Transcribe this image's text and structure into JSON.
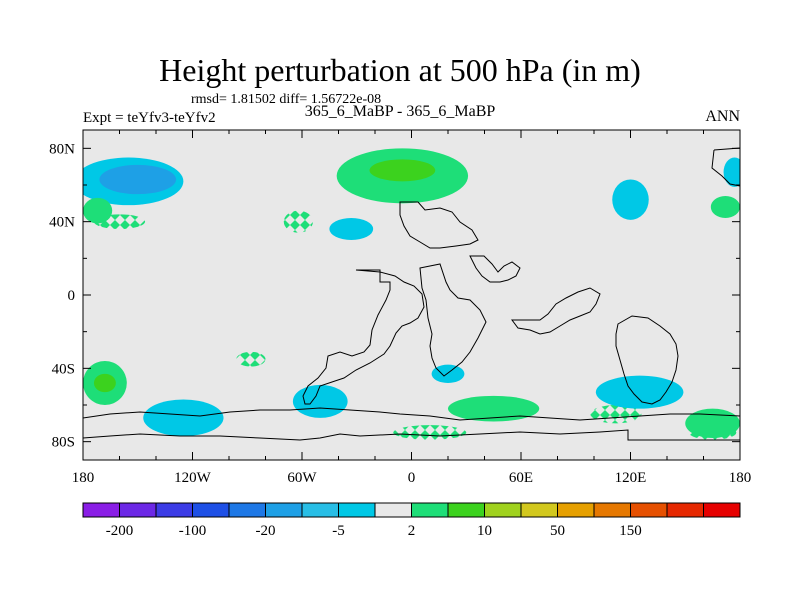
{
  "chart_data": {
    "type": "heatmap",
    "title": "Height perturbation at 500 hPa (in m)",
    "stats_text": "rmsd= 1.81502 diff= 1.56722e-08",
    "left_label": "Expt = teYfv3-teYfv2",
    "center_label": "365_6_MaBP - 365_6_MaBP",
    "right_label": "ANN",
    "x_range": [
      -180,
      180
    ],
    "y_range": [
      -90,
      90
    ],
    "x_ticks": [
      {
        "value": -180,
        "label": "180"
      },
      {
        "value": -120,
        "label": "120W"
      },
      {
        "value": -60,
        "label": "60W"
      },
      {
        "value": 0,
        "label": "0"
      },
      {
        "value": 60,
        "label": "60E"
      },
      {
        "value": 120,
        "label": "120E"
      },
      {
        "value": 180,
        "label": "180"
      }
    ],
    "y_ticks": [
      {
        "value": 80,
        "label": "80N"
      },
      {
        "value": 40,
        "label": "40N"
      },
      {
        "value": 0,
        "label": "0"
      },
      {
        "value": -40,
        "label": "40S"
      },
      {
        "value": -80,
        "label": "80S"
      }
    ],
    "colorbar": {
      "colors": [
        "#8a1ee6",
        "#6c28e6",
        "#3c3ce6",
        "#1e50e6",
        "#1e78e6",
        "#1ea0e6",
        "#28bee6",
        "#00c8e6",
        "#e8e8e8",
        "#1ede78",
        "#3cd21e",
        "#a0d21e",
        "#d2c81e",
        "#e6a000",
        "#e67800",
        "#e65000",
        "#e62800",
        "#e60000"
      ],
      "labels": [
        {
          "index": 1,
          "text": "-200"
        },
        {
          "index": 3,
          "text": "-100"
        },
        {
          "index": 5,
          "text": "-20"
        },
        {
          "index": 7,
          "text": "-5"
        },
        {
          "index": 9,
          "text": "2"
        },
        {
          "index": 11,
          "text": "10"
        },
        {
          "index": 13,
          "text": "50"
        },
        {
          "index": 15,
          "text": "150"
        }
      ]
    },
    "anomaly_regions": [
      {
        "name": "north-pacific-outer",
        "lon": -155,
        "lat": 62,
        "rlon": 30,
        "rlat": 13,
        "level": "weak_neg"
      },
      {
        "name": "north-pacific-core",
        "lon": -150,
        "lat": 63,
        "rlon": 21,
        "rlat": 8,
        "level": "mod_neg"
      },
      {
        "name": "europe-outer",
        "lon": -5,
        "lat": 65,
        "rlon": 36,
        "rlat": 15,
        "level": "weak_pos"
      },
      {
        "name": "europe-core",
        "lon": -5,
        "lat": 68,
        "rlon": 18,
        "rlat": 6,
        "level": "mod_pos"
      },
      {
        "name": "north-atlantic-low",
        "lon": -33,
        "lat": 36,
        "rlon": 12,
        "rlat": 6,
        "level": "weak_neg"
      },
      {
        "name": "asia-low",
        "lon": 120,
        "lat": 52,
        "rlon": 10,
        "rlat": 11,
        "level": "weak_neg"
      },
      {
        "name": "pacific-dateline-low",
        "lon": 177,
        "lat": 67,
        "rlon": 6,
        "rlat": 8,
        "level": "weak_neg"
      },
      {
        "name": "pacific-dateline-high",
        "lon": 172,
        "lat": 48,
        "rlon": 8,
        "rlat": 6,
        "level": "weak_pos"
      },
      {
        "name": "west-pacific-high",
        "lon": -172,
        "lat": 46,
        "rlon": 8,
        "rlat": 7,
        "level": "weak_pos"
      },
      {
        "name": "south-pacific-outer",
        "lon": -168,
        "lat": -48,
        "rlon": 12,
        "rlat": 12,
        "level": "weak_pos"
      },
      {
        "name": "south-pacific-core",
        "lon": -168,
        "lat": -48,
        "rlon": 6,
        "rlat": 5,
        "level": "mod_pos"
      },
      {
        "name": "south-pacific-low",
        "lon": -125,
        "lat": -67,
        "rlon": 22,
        "rlat": 10,
        "level": "weak_neg"
      },
      {
        "name": "south-america-low",
        "lon": -50,
        "lat": -58,
        "rlon": 15,
        "rlat": 9,
        "level": "weak_neg"
      },
      {
        "name": "south-atlantic-low",
        "lon": 20,
        "lat": -43,
        "rlon": 9,
        "rlat": 5,
        "level": "weak_neg"
      },
      {
        "name": "south-atlantic-high",
        "lon": 45,
        "lat": -62,
        "rlon": 25,
        "rlat": 7,
        "level": "weak_pos"
      },
      {
        "name": "indian-ocean-low",
        "lon": 125,
        "lat": -53,
        "rlon": 24,
        "rlat": 9,
        "level": "weak_neg"
      },
      {
        "name": "southern-ocean-high",
        "lon": 165,
        "lat": -70,
        "rlon": 15,
        "rlat": 8,
        "level": "weak_pos"
      }
    ],
    "hatched_regions": [
      {
        "name": "atlantic-hatch",
        "lon": -62,
        "lat": 40,
        "rlon": 8,
        "rlat": 6
      },
      {
        "name": "west-pacific-hatch",
        "lon": -160,
        "lat": 40,
        "rlon": 14,
        "rlat": 4
      },
      {
        "name": "south-america-hatch",
        "lon": -88,
        "lat": -35,
        "rlon": 8,
        "rlat": 4
      },
      {
        "name": "south-atlantic-hatch",
        "lon": 10,
        "lat": -75,
        "rlon": 20,
        "rlat": 4
      },
      {
        "name": "indian-ocean-hatch",
        "lon": 112,
        "lat": -65,
        "rlon": 14,
        "rlat": 5
      },
      {
        "name": "southern-ocean-hatch",
        "lon": 165,
        "lat": -75,
        "rlon": 13,
        "rlat": 4
      }
    ]
  }
}
